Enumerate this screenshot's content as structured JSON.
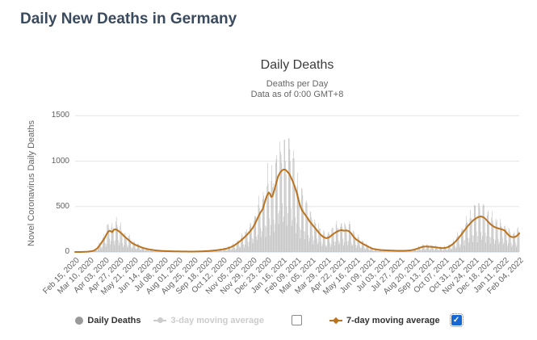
{
  "page": {
    "title": "Daily New Deaths in Germany"
  },
  "chart": {
    "title": "Daily Deaths",
    "subtitle_line1": "Deaths per Day",
    "subtitle_line2": "Data as of 0:00 GMT+8",
    "y_axis_title": "Novel Coronavirus Daily Deaths"
  },
  "legend": {
    "items": [
      {
        "label": "Daily Deaths",
        "marker": "circle",
        "color": "#999999",
        "text_color": "#333333",
        "checkbox": null
      },
      {
        "label": "3-day moving average",
        "marker": "line-circle",
        "color": "#cccccc",
        "text_color": "#cccccc",
        "checkbox": "unchecked"
      },
      {
        "label": "7-day moving average",
        "marker": "line-diamond",
        "color": "#bb731e",
        "text_color": "#333333",
        "checkbox": "checked"
      }
    ],
    "check_glyph": "✓"
  },
  "colors": {
    "grid": "#e6e6e6",
    "axis_line": "#ccd6eb",
    "bar": "#bdbdbd",
    "avg7_line": "#bb731e",
    "checkbox_checked": "#1767d2",
    "tick_text": "#606060"
  },
  "chart_data": {
    "type": "bar",
    "title": "Daily Deaths",
    "xlabel": "",
    "ylabel": "Novel Coronavirus Daily Deaths",
    "date_start": "Feb 15, 2020",
    "date_end": "Feb 04, 2022",
    "total_days": 720,
    "x_tick_interval_days": 24,
    "x_tick_labels": [
      "Feb 15, 2020",
      "Mar 10, 2020",
      "Apr 03, 2020",
      "Apr 27, 2020",
      "May 21, 2020",
      "Jun 14, 2020",
      "Jul 08, 2020",
      "Aug 01, 2020",
      "Aug 25, 2020",
      "Sep 18, 2020",
      "Oct 12, 2020",
      "Nov 05, 2020",
      "Nov 29, 2020",
      "Dec 23, 2020",
      "Jan 16, 2021",
      "Feb 09, 2021",
      "Mar 05, 2021",
      "Mar 29, 2021",
      "Apr 22, 2021",
      "May 16, 2021",
      "Jun 09, 2021",
      "Jul 03, 2021",
      "Jul 27, 2021",
      "Aug 20, 2021",
      "Sep 13, 2021",
      "Oct 07, 2021",
      "Oct 31, 2021",
      "Nov 24, 2021",
      "Dec 18, 2021",
      "Jan 11, 2022",
      "Feb 04, 2022"
    ],
    "y_ticks": [
      0,
      500,
      1000,
      1500
    ],
    "ylim": [
      0,
      1500
    ],
    "legend_position": "bottom",
    "grid": true,
    "series": [
      {
        "name": "Daily Deaths",
        "type": "bar",
        "color": "#bdbdbd",
        "pattern": "daily values oscillating around 7-day average with weekend reporting dips",
        "weekday_factors": [
          0.55,
          0.32,
          0.48,
          1.28,
          1.35,
          1.22,
          1.05
        ],
        "peak_value": 1250
      },
      {
        "name": "3-day moving average",
        "type": "line",
        "visible": false,
        "color": "#cccccc"
      },
      {
        "name": "7-day moving average",
        "type": "line",
        "visible": true,
        "color": "#bb731e",
        "keypoints_day_value": [
          [
            0,
            0
          ],
          [
            8,
            0
          ],
          [
            14,
            1
          ],
          [
            20,
            3
          ],
          [
            26,
            8
          ],
          [
            31,
            16
          ],
          [
            36,
            40
          ],
          [
            40,
            75
          ],
          [
            44,
            115
          ],
          [
            48,
            155
          ],
          [
            51,
            195
          ],
          [
            54,
            228
          ],
          [
            57,
            232
          ],
          [
            60,
            218
          ],
          [
            63,
            246
          ],
          [
            66,
            249
          ],
          [
            69,
            238
          ],
          [
            72,
            222
          ],
          [
            76,
            200
          ],
          [
            80,
            170
          ],
          [
            84,
            148
          ],
          [
            88,
            124
          ],
          [
            92,
            100
          ],
          [
            96,
            84
          ],
          [
            100,
            72
          ],
          [
            105,
            58
          ],
          [
            110,
            45
          ],
          [
            116,
            34
          ],
          [
            122,
            26
          ],
          [
            128,
            20
          ],
          [
            134,
            15
          ],
          [
            142,
            11
          ],
          [
            150,
            9
          ],
          [
            160,
            7
          ],
          [
            170,
            6
          ],
          [
            182,
            5
          ],
          [
            194,
            5
          ],
          [
            206,
            7
          ],
          [
            214,
            10
          ],
          [
            222,
            14
          ],
          [
            230,
            20
          ],
          [
            238,
            27
          ],
          [
            246,
            38
          ],
          [
            252,
            52
          ],
          [
            258,
            72
          ],
          [
            263,
            95
          ],
          [
            268,
            122
          ],
          [
            273,
            152
          ],
          [
            278,
            185
          ],
          [
            283,
            222
          ],
          [
            288,
            265
          ],
          [
            292,
            315
          ],
          [
            296,
            375
          ],
          [
            300,
            430
          ],
          [
            304,
            470
          ],
          [
            308,
            560
          ],
          [
            311,
            620
          ],
          [
            314,
            655
          ],
          [
            316,
            640
          ],
          [
            318,
            605
          ],
          [
            320,
            615
          ],
          [
            323,
            680
          ],
          [
            326,
            760
          ],
          [
            329,
            830
          ],
          [
            332,
            870
          ],
          [
            335,
            895
          ],
          [
            338,
            908
          ],
          [
            341,
            905
          ],
          [
            344,
            885
          ],
          [
            347,
            862
          ],
          [
            350,
            820
          ],
          [
            353,
            775
          ],
          [
            356,
            720
          ],
          [
            359,
            660
          ],
          [
            362,
            575
          ],
          [
            365,
            505
          ],
          [
            368,
            458
          ],
          [
            371,
            428
          ],
          [
            374,
            400
          ],
          [
            377,
            372
          ],
          [
            380,
            338
          ],
          [
            384,
            305
          ],
          [
            388,
            272
          ],
          [
            392,
            240
          ],
          [
            396,
            205
          ],
          [
            400,
            178
          ],
          [
            404,
            158
          ],
          [
            408,
            152
          ],
          [
            412,
            162
          ],
          [
            416,
            184
          ],
          [
            420,
            205
          ],
          [
            424,
            222
          ],
          [
            428,
            235
          ],
          [
            432,
            240
          ],
          [
            436,
            234
          ],
          [
            440,
            238
          ],
          [
            444,
            228
          ],
          [
            448,
            202
          ],
          [
            452,
            162
          ],
          [
            456,
            136
          ],
          [
            460,
            118
          ],
          [
            464,
            100
          ],
          [
            468,
            84
          ],
          [
            472,
            70
          ],
          [
            476,
            56
          ],
          [
            480,
            42
          ],
          [
            484,
            33
          ],
          [
            490,
            26
          ],
          [
            496,
            21
          ],
          [
            504,
            18
          ],
          [
            512,
            16
          ],
          [
            520,
            14
          ],
          [
            528,
            13
          ],
          [
            536,
            14
          ],
          [
            544,
            18
          ],
          [
            550,
            26
          ],
          [
            556,
            40
          ],
          [
            561,
            52
          ],
          [
            566,
            60
          ],
          [
            571,
            60
          ],
          [
            576,
            57
          ],
          [
            581,
            54
          ],
          [
            586,
            50
          ],
          [
            591,
            45
          ],
          [
            596,
            42
          ],
          [
            601,
            46
          ],
          [
            606,
            58
          ],
          [
            611,
            80
          ],
          [
            616,
            110
          ],
          [
            621,
            148
          ],
          [
            626,
            190
          ],
          [
            631,
            235
          ],
          [
            636,
            280
          ],
          [
            641,
            318
          ],
          [
            646,
            352
          ],
          [
            651,
            375
          ],
          [
            655,
            388
          ],
          [
            659,
            390
          ],
          [
            663,
            378
          ],
          [
            667,
            352
          ],
          [
            671,
            322
          ],
          [
            675,
            296
          ],
          [
            679,
            278
          ],
          [
            683,
            266
          ],
          [
            687,
            258
          ],
          [
            690,
            252
          ],
          [
            693,
            246
          ],
          [
            696,
            238
          ],
          [
            699,
            215
          ],
          [
            702,
            190
          ],
          [
            705,
            172
          ],
          [
            708,
            165
          ],
          [
            711,
            163
          ],
          [
            714,
            168
          ],
          [
            717,
            182
          ],
          [
            720,
            205
          ]
        ]
      }
    ]
  }
}
